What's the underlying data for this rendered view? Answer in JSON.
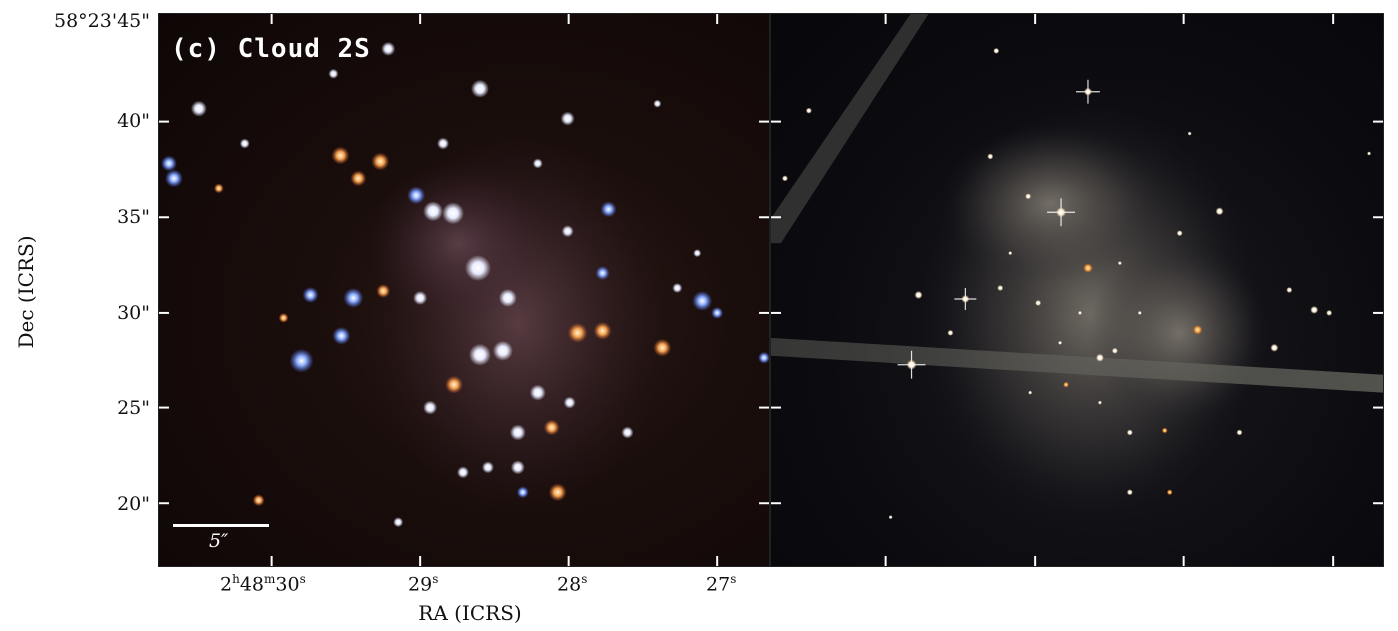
{
  "panel_label": "(c) Cloud 2S",
  "scale_bar_label": "5″",
  "y_axis": {
    "title": "Dec (ICRS)",
    "ticks": [
      "58°23'45\"",
      "40\"",
      "35\"",
      "30\"",
      "25\"",
      "20\""
    ]
  },
  "x_axis": {
    "title": "RA (ICRS)",
    "ticks": [
      {
        "h": "2",
        "m": "48",
        "s": "30"
      },
      {
        "s": "29"
      },
      {
        "s": "28"
      },
      {
        "s": "27"
      }
    ]
  },
  "colors": {
    "left_background": "#140a09",
    "right_background": "#0b0b10",
    "axis": "#222222",
    "label": "#ffffff"
  }
}
